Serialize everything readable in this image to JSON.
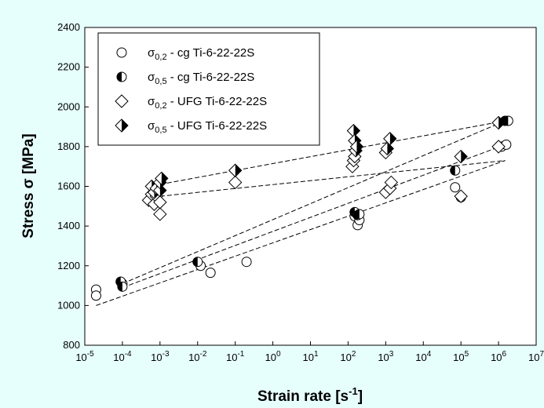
{
  "chart_data": {
    "type": "scatter",
    "xlabel": {
      "main": "Strain rate [s",
      "sup": "-1",
      "tail": "]"
    },
    "ylabel": "Stress σ [MPa]",
    "x_scale": "log",
    "xlim": [
      1e-05,
      10000000.0
    ],
    "ylim": [
      800,
      2400
    ],
    "x_ticks": [
      {
        "base": "10",
        "exp": "-5"
      },
      {
        "base": "10",
        "exp": "-4"
      },
      {
        "base": "10",
        "exp": "-3"
      },
      {
        "base": "10",
        "exp": "-2"
      },
      {
        "base": "10",
        "exp": "-1"
      },
      {
        "base": "10",
        "exp": "0"
      },
      {
        "base": "10",
        "exp": "1"
      },
      {
        "base": "10",
        "exp": "2"
      },
      {
        "base": "10",
        "exp": "3"
      },
      {
        "base": "10",
        "exp": "4"
      },
      {
        "base": "10",
        "exp": "5"
      },
      {
        "base": "10",
        "exp": "6"
      },
      {
        "base": "10",
        "exp": "7"
      }
    ],
    "y_ticks": [
      "800",
      "1000",
      "1200",
      "1400",
      "1600",
      "1800",
      "2000",
      "2200",
      "2400"
    ],
    "legend_position": "top-left",
    "series": [
      {
        "name": "σ0,2 - cg Ti-6-22-22S",
        "legend": {
          "sym": "σ",
          "sub": "0,2",
          "rest": " - cg Ti-6-22-22S"
        },
        "marker": "circle-open",
        "points": [
          [
            2e-05,
            1080
          ],
          [
            2e-05,
            1050
          ],
          [
            0.0001,
            1110
          ],
          [
            0.012,
            1200
          ],
          [
            0.022,
            1165
          ],
          [
            0.2,
            1220
          ],
          [
            150,
            1450
          ],
          [
            180,
            1405
          ],
          [
            200,
            1430
          ],
          [
            70000.0,
            1595
          ],
          [
            100000.0,
            1545
          ],
          [
            1200000.0,
            1800
          ],
          [
            1600000.0,
            1810
          ]
        ]
      },
      {
        "name": "σ0,5 - cg Ti-6-22-22S",
        "legend": {
          "sym": "σ",
          "sub": "0,5",
          "rest": " - cg Ti-6-22-22S"
        },
        "marker": "circle-half",
        "points": [
          [
            9e-05,
            1120
          ],
          [
            0.0001,
            1095
          ],
          [
            0.01,
            1220
          ],
          [
            150,
            1470
          ],
          [
            180,
            1455
          ],
          [
            200,
            1460
          ],
          [
            70000.0,
            1680
          ],
          [
            1500000.0,
            1930
          ],
          [
            1800000.0,
            1930
          ]
        ]
      },
      {
        "name": "σ0,2 - UFG Ti-6-22-22S",
        "legend": {
          "sym": "σ",
          "sub": "0,2",
          "rest": " - UFG Ti-6-22-22S"
        },
        "marker": "diamond-open",
        "points": [
          [
            0.0005,
            1530
          ],
          [
            0.0006,
            1560
          ],
          [
            0.0007,
            1510
          ],
          [
            0.0008,
            1550
          ],
          [
            0.001,
            1460
          ],
          [
            0.001,
            1520
          ],
          [
            0.1,
            1620
          ],
          [
            130,
            1700
          ],
          [
            140,
            1730
          ],
          [
            150,
            1750
          ],
          [
            1000,
            1570
          ],
          [
            1000,
            1770
          ],
          [
            1300,
            1590
          ],
          [
            1400,
            1620
          ],
          [
            100000.0,
            1550
          ],
          [
            1000000.0,
            1800
          ]
        ]
      },
      {
        "name": "σ0,5 - UFG Ti-6-22-22S",
        "legend": {
          "sym": "σ",
          "sub": "0,5",
          "rest": " - UFG Ti-6-22-22S"
        },
        "marker": "diamond-half",
        "points": [
          [
            0.0006,
            1600
          ],
          [
            0.0007,
            1570
          ],
          [
            0.0008,
            1590
          ],
          [
            0.001,
            1580
          ],
          [
            0.001,
            1620
          ],
          [
            0.0011,
            1640
          ],
          [
            0.1,
            1680
          ],
          [
            140,
            1880
          ],
          [
            150,
            1830
          ],
          [
            160,
            1780
          ],
          [
            170,
            1800
          ],
          [
            1100,
            1790
          ],
          [
            1300,
            1840
          ],
          [
            100000.0,
            1750
          ],
          [
            1000000.0,
            1920
          ]
        ]
      }
    ],
    "fit_lines": [
      {
        "style": "dashed",
        "points": [
          [
            2e-05,
            1000
          ],
          [
            1500000.0,
            1730
          ]
        ]
      },
      {
        "style": "dashed",
        "points": [
          [
            0.0001,
            1090
          ],
          [
            1500000.0,
            1810
          ]
        ]
      },
      {
        "style": "dashed",
        "points": [
          [
            0.0001,
            1110
          ],
          [
            1500000.0,
            1930
          ]
        ]
      },
      {
        "style": "dashed",
        "points": [
          [
            0.001,
            1550
          ],
          [
            1500000.0,
            1730
          ]
        ]
      },
      {
        "style": "dashed",
        "points": [
          [
            0.001,
            1610
          ],
          [
            1500000.0,
            1930
          ]
        ]
      }
    ],
    "colors": {
      "background": "#e6fffd",
      "plot_area": "#ffffff",
      "ink": "#000000"
    }
  }
}
